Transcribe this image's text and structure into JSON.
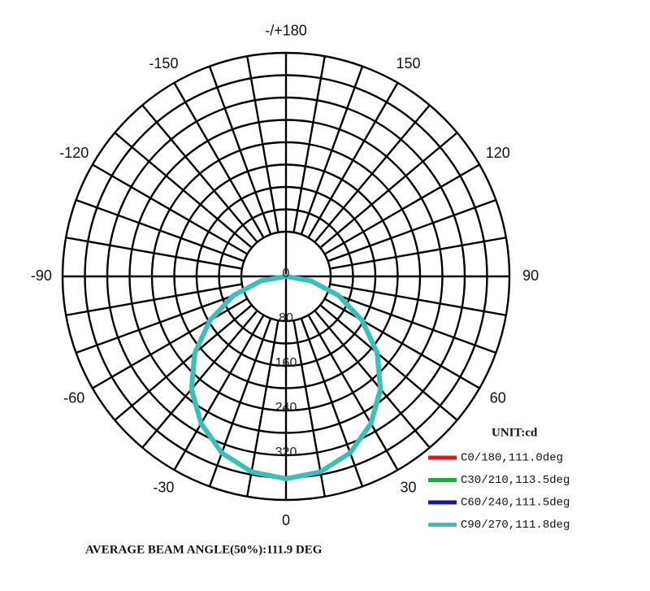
{
  "chart_data": {
    "type": "polar",
    "theta": [
      -90,
      -80,
      -70,
      -60,
      -50,
      -40,
      -30,
      -20,
      -10,
      0,
      10,
      20,
      30,
      40,
      50,
      60,
      70,
      80,
      90
    ],
    "series": [
      {
        "name": "C0/180,111.0deg",
        "color": "#e8141c",
        "values": [
          0,
          44,
          99,
          155,
          211,
          262,
          303,
          335,
          354,
          361,
          354,
          335,
          303,
          262,
          211,
          155,
          99,
          44,
          0
        ]
      },
      {
        "name": "C30/210,113.5deg",
        "color": "#1fa83a",
        "values": [
          0,
          47,
          103,
          160,
          216,
          266,
          306,
          337,
          355,
          362,
          355,
          337,
          306,
          266,
          216,
          160,
          103,
          47,
          0
        ]
      },
      {
        "name": "C60/240,111.5deg",
        "color": "#1a1a8c",
        "values": [
          0,
          45,
          100,
          157,
          213,
          263,
          304,
          336,
          355,
          362,
          355,
          336,
          304,
          263,
          213,
          157,
          100,
          45,
          0
        ]
      },
      {
        "name": "C90/270,111.8deg",
        "color": "#3cbfb6",
        "values": [
          0,
          45,
          100,
          157,
          213,
          263,
          304,
          336,
          355,
          362,
          355,
          336,
          304,
          263,
          213,
          157,
          100,
          45,
          0
        ]
      }
    ],
    "rlim": [
      0,
      400
    ],
    "rticks": [
      0,
      80,
      160,
      240,
      320
    ],
    "thetaticks": [
      0,
      30,
      60,
      90,
      120,
      150,
      {
        "value": 180,
        "label": "-/+180"
      },
      -150,
      -120,
      -90,
      -60,
      -30
    ],
    "unit_label": "UNIT:cd",
    "footer": "AVERAGE BEAM ANGLE(50%):111.9 DEG"
  }
}
